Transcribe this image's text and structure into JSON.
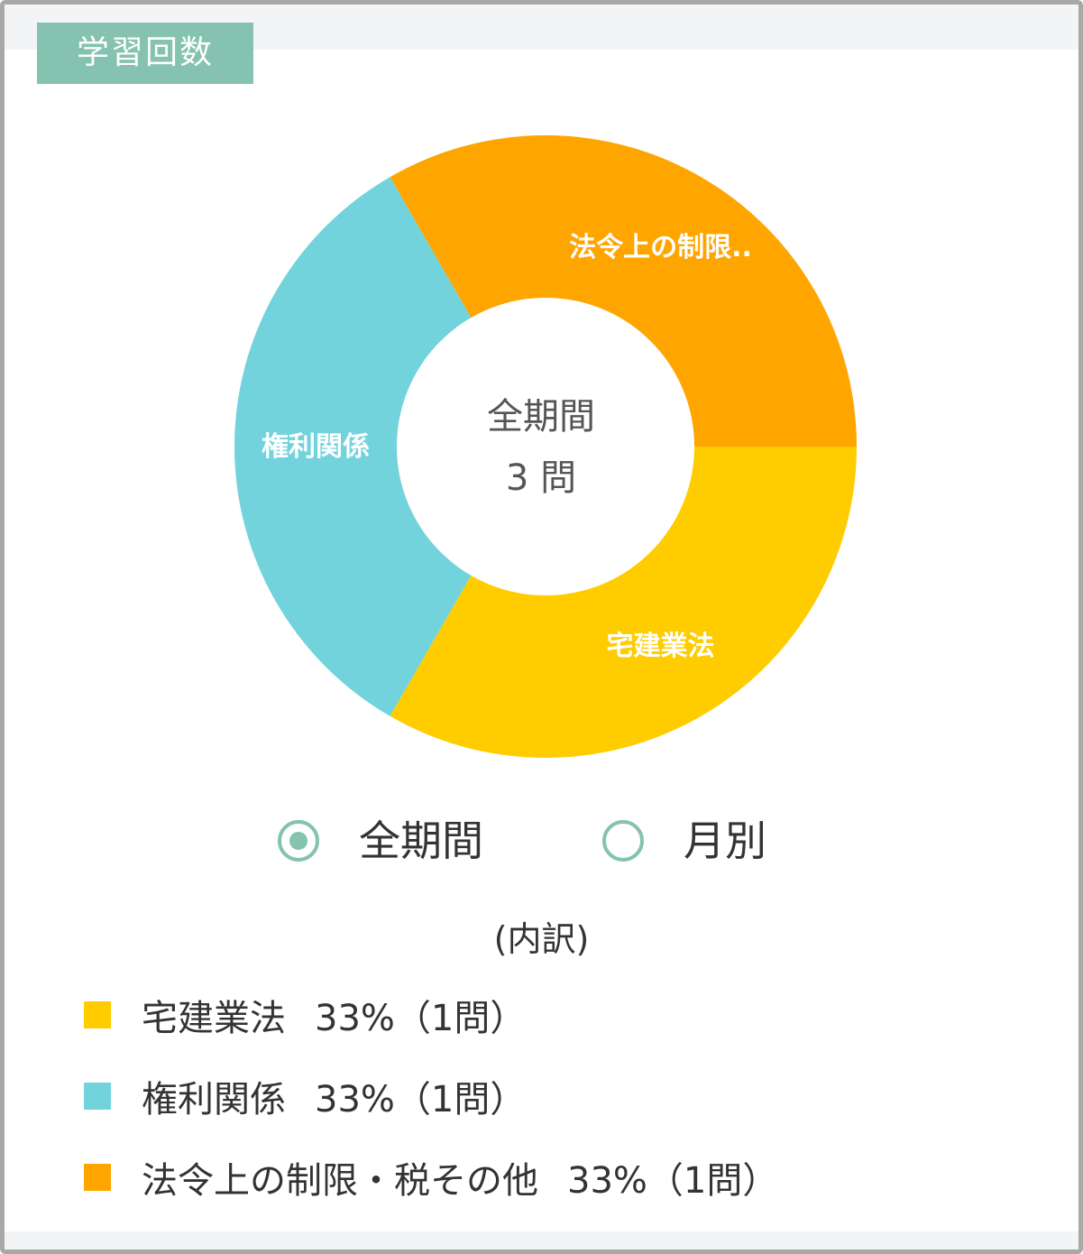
{
  "header": {
    "title": "学習回数"
  },
  "chart_data": {
    "type": "pie",
    "donut": true,
    "center": {
      "line1": "全期間",
      "line2": "3 問"
    },
    "slices": [
      {
        "name": "宅建業法",
        "label": "宅建業法",
        "value": 1,
        "color": "#ffcc00"
      },
      {
        "name": "権利関係",
        "label": "権利関係",
        "value": 1,
        "color": "#73d3dc"
      },
      {
        "name": "法令上の制限・税その他",
        "label": "法令上の制限..",
        "value": 1,
        "color": "#ffa500"
      }
    ]
  },
  "period_toggle": {
    "options": [
      {
        "label": "全期間",
        "selected": true
      },
      {
        "label": "月別",
        "selected": false
      }
    ]
  },
  "breakdown": {
    "title": "(内訳)",
    "items": [
      {
        "name": "宅建業法",
        "value": "33%（1問）",
        "color": "#ffcc00"
      },
      {
        "name": "権利関係",
        "value": "33%（1問）",
        "color": "#73d3dc"
      },
      {
        "name": "法令上の制限・税その他",
        "value": "33%（1問）",
        "color": "#ffa500"
      }
    ]
  }
}
